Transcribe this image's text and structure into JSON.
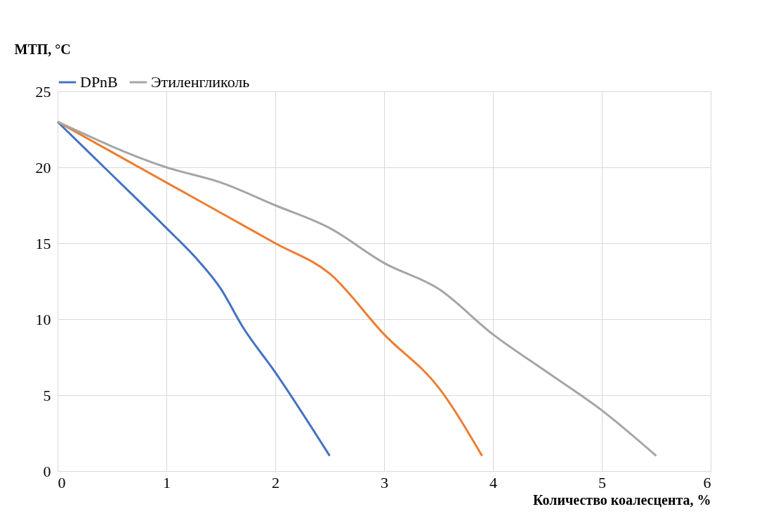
{
  "chart_data": {
    "type": "line",
    "xlabel": "Количество коалесцента, %",
    "ylabel": "МТП, °C",
    "xlim": [
      0,
      6
    ],
    "xticks": [
      0,
      1,
      2,
      3,
      4,
      5,
      6
    ],
    "ylim": [
      0,
      25
    ],
    "yticks": [
      0,
      5,
      10,
      15,
      20,
      25
    ],
    "grid": true,
    "legend": "top",
    "line_style": "solid",
    "marker": "none",
    "series": [
      {
        "name": "DPnB",
        "color": "#4472c4",
        "x": [
          0,
          0.5,
          1,
          1.3,
          1.5,
          1.7,
          2,
          2.5
        ],
        "values": [
          23,
          19.5,
          16,
          13.8,
          12,
          9.5,
          6.5,
          1
        ]
      },
      {
        "color": "#ed7d31",
        "x": [
          0,
          1,
          1.5,
          2,
          2.5,
          3,
          3.5,
          3.9
        ],
        "values": [
          23,
          19,
          17,
          15,
          13,
          9,
          5.5,
          1
        ]
      },
      {
        "name": "Этиленгликоль",
        "color": "#a5a5a5",
        "x": [
          0,
          1,
          1.5,
          2,
          2.5,
          3,
          3.5,
          4,
          4.5,
          5,
          5.5
        ],
        "values": [
          23,
          20,
          19,
          17.5,
          16,
          13.7,
          12,
          9,
          6.5,
          4,
          1
        ]
      }
    ]
  }
}
